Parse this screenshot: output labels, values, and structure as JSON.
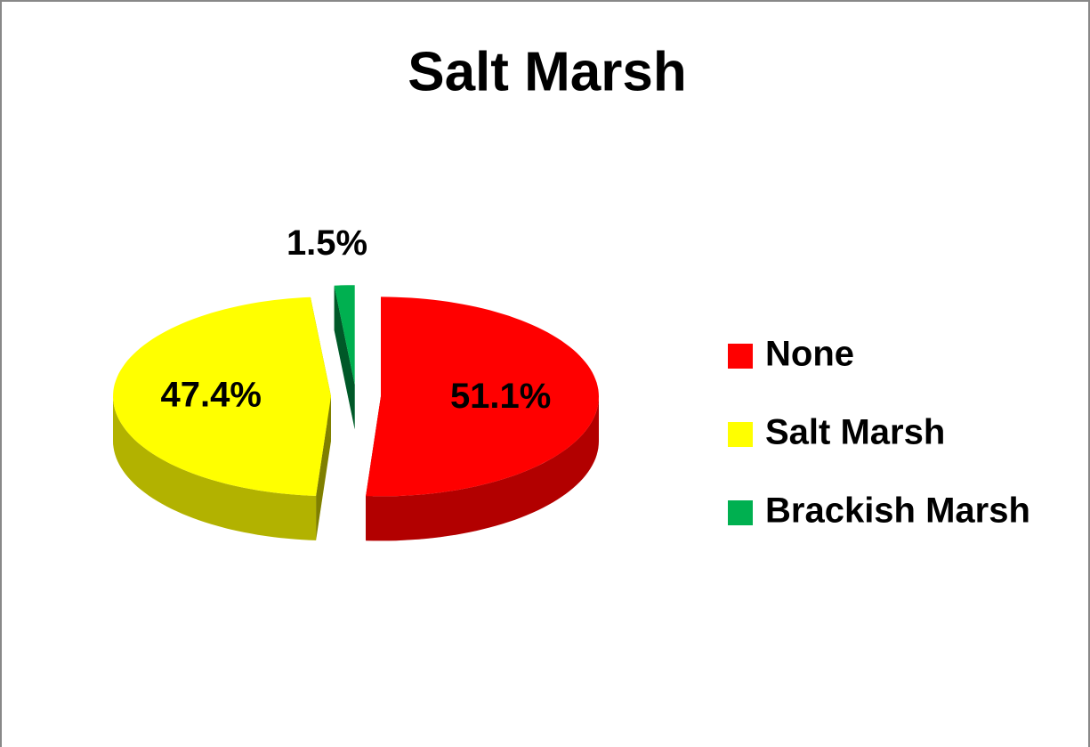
{
  "chart_data": {
    "type": "pie",
    "title": "Salt Marsh",
    "categories": [
      "None",
      "Salt Marsh",
      "Brackish Marsh"
    ],
    "values": [
      51.1,
      47.4,
      1.5
    ],
    "value_labels": [
      "51.1%",
      "47.4%",
      "1.5%"
    ],
    "colors": [
      "#ff0000",
      "#ffff00",
      "#00b050"
    ],
    "legend": "right"
  }
}
